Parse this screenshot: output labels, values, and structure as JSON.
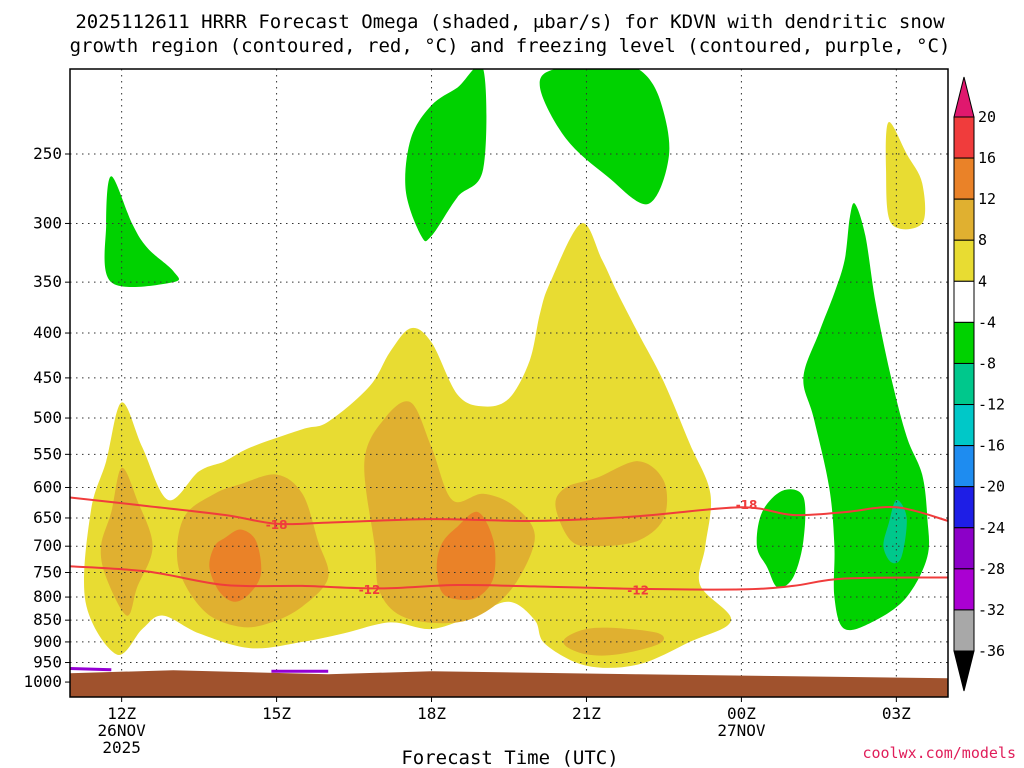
{
  "chart_data": {
    "type": "contour",
    "title_line1": "2025112611 HRRR Forecast Omega (shaded, μbar/s) for KDVN with dendritic snow",
    "title_line2": "growth region (contoured, red, °C) and freezing level (contoured, purple, °C)",
    "xlabel": "Forecast Time (UTC)",
    "credit": "coolwx.com/models",
    "x_ticks": [
      {
        "hour": 12,
        "label": "12Z",
        "sub": [
          "26NOV",
          "2025"
        ]
      },
      {
        "hour": 15,
        "label": "15Z",
        "sub": []
      },
      {
        "hour": 18,
        "label": "18Z",
        "sub": []
      },
      {
        "hour": 21,
        "label": "21Z",
        "sub": []
      },
      {
        "hour": 24,
        "label": "00Z",
        "sub": [
          "27NOV"
        ]
      },
      {
        "hour": 27,
        "label": "03Z",
        "sub": []
      }
    ],
    "xlim": [
      11,
      28
    ],
    "y_ticks": [
      250,
      300,
      350,
      400,
      450,
      500,
      550,
      600,
      650,
      700,
      750,
      800,
      850,
      900,
      950,
      1000
    ],
    "ylim": [
      200,
      1040
    ],
    "colorbar": {
      "levels": [
        "20",
        "16",
        "12",
        "8",
        "4",
        "-4",
        "-8",
        "-12",
        "-16",
        "-20",
        "-24",
        "-28",
        "-32",
        "-36"
      ],
      "colors": [
        "#e0186e",
        "#f03c3c",
        "#ea8228",
        "#e0b030",
        "#e8dc32",
        "#ffffff",
        "#00d200",
        "#00c88c",
        "#00c8c8",
        "#1e8cf0",
        "#1e1ee6",
        "#8c00c8",
        "#aa00d2",
        "#a8a8a8",
        "#000000"
      ]
    },
    "contours": [
      {
        "name": "dendritic -18",
        "color": "#f03c3c",
        "label": "-18",
        "points": [
          [
            11,
            616
          ],
          [
            12.5,
            630
          ],
          [
            14,
            645
          ],
          [
            15,
            660
          ],
          [
            16,
            658
          ],
          [
            18,
            652
          ],
          [
            20,
            655
          ],
          [
            22,
            647
          ],
          [
            24,
            632
          ],
          [
            25,
            645
          ],
          [
            26,
            640
          ],
          [
            27,
            632
          ],
          [
            28,
            655
          ]
        ]
      },
      {
        "name": "dendritic -12",
        "color": "#f03c3c",
        "label": "-12",
        "points": [
          [
            11,
            738
          ],
          [
            12.5,
            748
          ],
          [
            14,
            775
          ],
          [
            15.5,
            777
          ],
          [
            17,
            782
          ],
          [
            18.5,
            775
          ],
          [
            20,
            778
          ],
          [
            22,
            783
          ],
          [
            24,
            784
          ],
          [
            25,
            777
          ],
          [
            26,
            762
          ],
          [
            28,
            760
          ]
        ]
      }
    ],
    "contour_labels": [
      {
        "text": "-18",
        "x": 15.0,
        "y": 662
      },
      {
        "text": "-12",
        "x": 16.8,
        "y": 785
      },
      {
        "text": "-12",
        "x": 22.0,
        "y": 786
      },
      {
        "text": "-18",
        "x": 24.1,
        "y": 628
      }
    ],
    "freezing_level": {
      "color": "#9400d3",
      "segments": [
        [
          [
            11,
            965
          ],
          [
            11.8,
            968
          ]
        ],
        [
          [
            14.9,
            972
          ],
          [
            16.0,
            972
          ]
        ]
      ]
    },
    "omega_regions": [
      {
        "level": "4",
        "color": "#e8dc32",
        "points": [
          [
            11.9,
            930
          ],
          [
            11.3,
            810
          ],
          [
            11.4,
            640
          ],
          [
            11.7,
            560
          ],
          [
            12.0,
            480
          ],
          [
            12.4,
            540
          ],
          [
            12.9,
            620
          ],
          [
            13.5,
            575
          ],
          [
            14.0,
            560
          ],
          [
            14.5,
            540
          ],
          [
            15.5,
            515
          ],
          [
            16.0,
            505
          ],
          [
            16.8,
            460
          ],
          [
            17.2,
            420
          ],
          [
            17.6,
            395
          ],
          [
            18.0,
            410
          ],
          [
            18.5,
            470
          ],
          [
            19.0,
            485
          ],
          [
            19.5,
            475
          ],
          [
            19.9,
            430
          ],
          [
            20.1,
            380
          ],
          [
            20.3,
            350
          ],
          [
            20.9,
            300
          ],
          [
            21.3,
            330
          ],
          [
            21.6,
            360
          ],
          [
            22.0,
            400
          ],
          [
            22.5,
            455
          ],
          [
            23.0,
            535
          ],
          [
            23.4,
            610
          ],
          [
            23.3,
            700
          ],
          [
            23.2,
            775
          ],
          [
            23.8,
            850
          ],
          [
            23.0,
            900
          ],
          [
            22.0,
            955
          ],
          [
            21.0,
            958
          ],
          [
            20.2,
            905
          ],
          [
            20.0,
            850
          ],
          [
            19.5,
            810
          ],
          [
            18.8,
            840
          ],
          [
            18.0,
            870
          ],
          [
            17.2,
            855
          ],
          [
            16.3,
            880
          ],
          [
            15.5,
            900
          ],
          [
            14.5,
            915
          ],
          [
            13.5,
            880
          ],
          [
            12.8,
            840
          ],
          [
            12.4,
            870
          ]
        ]
      },
      {
        "level": "4",
        "color": "#e8dc32",
        "points": [
          [
            26.85,
            230
          ],
          [
            27.2,
            250
          ],
          [
            27.5,
            270
          ],
          [
            27.5,
            300
          ],
          [
            26.9,
            300
          ],
          [
            26.8,
            260
          ]
        ]
      },
      {
        "level": "8",
        "color": "#e0b030",
        "points": [
          [
            11.8,
            640
          ],
          [
            12.0,
            570
          ],
          [
            12.3,
            620
          ],
          [
            12.6,
            700
          ],
          [
            12.3,
            780
          ],
          [
            12.1,
            840
          ],
          [
            11.7,
            760
          ],
          [
            11.6,
            700
          ]
        ]
      },
      {
        "level": "8",
        "color": "#e0b030",
        "points": [
          [
            13.6,
            830
          ],
          [
            13.1,
            740
          ],
          [
            13.2,
            650
          ],
          [
            13.8,
            610
          ],
          [
            14.3,
            595
          ],
          [
            15.0,
            580
          ],
          [
            15.5,
            610
          ],
          [
            15.8,
            690
          ],
          [
            16.0,
            760
          ],
          [
            15.5,
            820
          ],
          [
            14.9,
            855
          ],
          [
            14.3,
            865
          ]
        ]
      },
      {
        "level": "8",
        "color": "#e0b030",
        "points": [
          [
            16.9,
            700
          ],
          [
            16.7,
            560
          ],
          [
            17.1,
            500
          ],
          [
            17.6,
            480
          ],
          [
            18.0,
            540
          ],
          [
            18.4,
            620
          ],
          [
            19.0,
            610
          ],
          [
            19.6,
            630
          ],
          [
            20.0,
            680
          ],
          [
            19.7,
            760
          ],
          [
            19.2,
            820
          ],
          [
            18.5,
            855
          ],
          [
            17.5,
            845
          ],
          [
            17.0,
            790
          ]
        ]
      },
      {
        "level": "8",
        "color": "#e0b030",
        "points": [
          [
            20.4,
            630
          ],
          [
            20.6,
            600
          ],
          [
            21.2,
            585
          ],
          [
            22.0,
            560
          ],
          [
            22.5,
            590
          ],
          [
            22.5,
            650
          ],
          [
            22.0,
            690
          ],
          [
            21.2,
            700
          ],
          [
            20.7,
            690
          ]
        ]
      },
      {
        "level": "8",
        "color": "#e0b030",
        "points": [
          [
            20.6,
            890
          ],
          [
            21.0,
            870
          ],
          [
            21.6,
            868
          ],
          [
            22.4,
            880
          ],
          [
            22.4,
            905
          ],
          [
            21.6,
            930
          ],
          [
            21.0,
            930
          ],
          [
            20.6,
            910
          ]
        ]
      },
      {
        "level": "12",
        "color": "#ea8228",
        "points": [
          [
            13.9,
            790
          ],
          [
            13.7,
            740
          ],
          [
            13.8,
            700
          ],
          [
            14.0,
            685
          ],
          [
            14.3,
            670
          ],
          [
            14.6,
            690
          ],
          [
            14.7,
            750
          ],
          [
            14.5,
            790
          ],
          [
            14.2,
            810
          ]
        ]
      },
      {
        "level": "12",
        "color": "#ea8228",
        "points": [
          [
            18.2,
            790
          ],
          [
            18.1,
            740
          ],
          [
            18.2,
            695
          ],
          [
            18.5,
            665
          ],
          [
            18.9,
            640
          ],
          [
            19.2,
            690
          ],
          [
            19.2,
            760
          ],
          [
            18.9,
            800
          ],
          [
            18.5,
            805
          ]
        ]
      },
      {
        "level": "-4",
        "color": "#00d200",
        "points": [
          [
            11.8,
            350
          ],
          [
            11.7,
            300
          ],
          [
            11.8,
            265
          ],
          [
            12.2,
            300
          ],
          [
            12.5,
            320
          ],
          [
            13.0,
            340
          ],
          [
            13.0,
            350
          ]
        ]
      },
      {
        "level": "-4",
        "color": "#00d200",
        "points": [
          [
            17.8,
            310
          ],
          [
            17.5,
            275
          ],
          [
            17.6,
            240
          ],
          [
            18.0,
            220
          ],
          [
            18.5,
            210
          ],
          [
            19.0,
            200
          ],
          [
            19.0,
            260
          ],
          [
            18.5,
            280
          ],
          [
            18.0,
            310
          ]
        ]
      },
      {
        "level": "-4",
        "color": "#00d200",
        "points": [
          [
            20.1,
            210
          ],
          [
            20.4,
            200
          ],
          [
            21.5,
            200
          ],
          [
            22.0,
            200
          ],
          [
            22.4,
            215
          ],
          [
            22.6,
            250
          ],
          [
            22.2,
            285
          ],
          [
            21.4,
            265
          ],
          [
            20.6,
            240
          ]
        ]
      },
      {
        "level": "-4",
        "color": "#00d200",
        "points": [
          [
            24.3,
            700
          ],
          [
            24.4,
            640
          ],
          [
            24.8,
            605
          ],
          [
            25.2,
            615
          ],
          [
            25.2,
            690
          ],
          [
            25.0,
            760
          ],
          [
            24.7,
            780
          ],
          [
            24.5,
            740
          ]
        ]
      },
      {
        "level": "-4",
        "color": "#00d200",
        "points": [
          [
            26.0,
            330
          ],
          [
            26.1,
            295
          ],
          [
            26.2,
            285
          ],
          [
            26.4,
            310
          ],
          [
            26.6,
            370
          ],
          [
            26.9,
            450
          ],
          [
            27.2,
            525
          ],
          [
            27.5,
            580
          ],
          [
            27.6,
            650
          ],
          [
            27.6,
            720
          ],
          [
            27.2,
            800
          ],
          [
            26.6,
            850
          ],
          [
            26.0,
            870
          ],
          [
            25.8,
            800
          ],
          [
            25.8,
            700
          ],
          [
            25.7,
            600
          ],
          [
            25.4,
            500
          ],
          [
            25.2,
            450
          ],
          [
            25.5,
            400
          ],
          [
            25.8,
            360
          ]
        ]
      },
      {
        "level": "-8",
        "color": "#00c88c",
        "points": [
          [
            26.85,
            660
          ],
          [
            27.0,
            620
          ],
          [
            27.2,
            650
          ],
          [
            27.1,
            720
          ],
          [
            26.9,
            730
          ],
          [
            26.75,
            700
          ]
        ]
      }
    ]
  }
}
